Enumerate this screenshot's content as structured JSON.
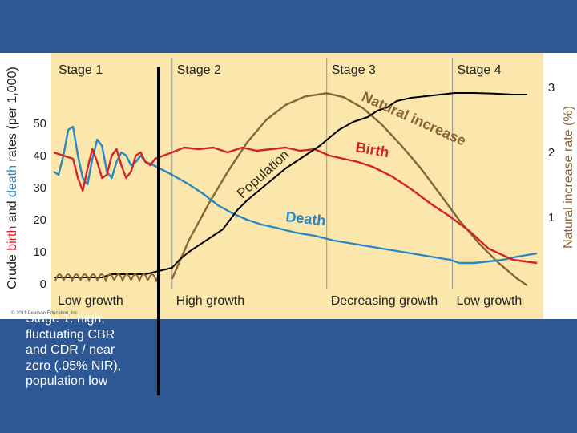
{
  "caption": {
    "lines": [
      "Stage 1: high,",
      "fluctuating CBR",
      "and CDR / near",
      "zero (.05% NIR),",
      "population low"
    ]
  },
  "colors": {
    "slide_bg": "#2e5795",
    "plot_bg": "#fbe7ac",
    "outer_bg": "#ffffff",
    "birth": "#d2232a",
    "death": "#2b86c4",
    "natural_increase": "#8b6433",
    "population": "#000000",
    "stage_divider": "#999999",
    "marker_bar": "#000000"
  },
  "chart_data": {
    "type": "line",
    "x_axis": "time (schematic, no units)",
    "y_left": {
      "label_parts": [
        "Crude ",
        "birth",
        " and ",
        "death",
        " rates (per 1,000)"
      ],
      "range": [
        0,
        70
      ],
      "ticks": [
        "0",
        "10",
        "20",
        "30",
        "40",
        "50"
      ]
    },
    "y_right": {
      "label": "Natural increase rate (%)",
      "range": [
        0,
        3.55
      ],
      "ticks": [
        "1",
        "2",
        "3"
      ]
    },
    "stages": [
      {
        "name": "Stage 1",
        "growth": "Low growth",
        "start": 0
      },
      {
        "name": "Stage 2",
        "growth": "High growth",
        "start": 24.5
      },
      {
        "name": "Stage 3",
        "growth": "Decreasing growth",
        "start": 56.5
      },
      {
        "name": "Stage 4",
        "growth": "Low growth",
        "start": 82.5
      }
    ],
    "x_range": [
      0,
      100
    ],
    "series_labels": {
      "natural_increase": "Natural increase",
      "birth": "Birth",
      "death": "Death",
      "population": "Population"
    },
    "copyright": "© 2011 Pearson Education, Inc.",
    "series": [
      {
        "name": "Birth",
        "axis": "left",
        "points": [
          [
            0,
            41
          ],
          [
            2,
            40
          ],
          [
            4,
            39
          ],
          [
            5,
            33
          ],
          [
            6,
            29
          ],
          [
            7,
            36
          ],
          [
            8,
            42
          ],
          [
            9,
            38
          ],
          [
            10,
            33
          ],
          [
            11,
            34
          ],
          [
            12,
            40
          ],
          [
            13,
            42
          ],
          [
            14,
            37
          ],
          [
            15,
            33
          ],
          [
            16,
            35
          ],
          [
            17,
            40
          ],
          [
            18,
            41
          ],
          [
            19,
            38
          ],
          [
            20,
            37
          ],
          [
            21,
            39
          ],
          [
            24.5,
            41
          ],
          [
            27,
            42.5
          ],
          [
            30,
            42
          ],
          [
            33,
            42.5
          ],
          [
            36,
            41
          ],
          [
            39,
            42.5
          ],
          [
            42,
            41.5
          ],
          [
            45,
            42
          ],
          [
            48,
            42.5
          ],
          [
            51,
            41.5
          ],
          [
            54,
            42
          ],
          [
            57,
            40
          ],
          [
            60,
            39
          ],
          [
            63,
            38
          ],
          [
            66,
            36.5
          ],
          [
            70,
            33.5
          ],
          [
            74,
            29.5
          ],
          [
            78,
            25
          ],
          [
            82,
            21
          ],
          [
            86,
            16.5
          ],
          [
            90,
            11
          ],
          [
            95,
            7.5
          ],
          [
            100,
            6.5
          ]
        ]
      },
      {
        "name": "Death",
        "axis": "left",
        "points": [
          [
            0,
            35
          ],
          [
            1,
            34
          ],
          [
            2,
            40
          ],
          [
            3,
            48
          ],
          [
            4,
            49
          ],
          [
            5,
            40
          ],
          [
            6,
            33
          ],
          [
            7,
            31
          ],
          [
            8,
            39
          ],
          [
            9,
            45
          ],
          [
            10,
            43
          ],
          [
            11,
            35
          ],
          [
            12,
            33
          ],
          [
            13,
            38
          ],
          [
            14,
            41
          ],
          [
            15,
            40
          ],
          [
            16,
            37
          ],
          [
            17,
            38
          ],
          [
            18,
            40
          ],
          [
            19,
            38
          ],
          [
            20,
            37.5
          ],
          [
            24.5,
            34
          ],
          [
            28,
            31
          ],
          [
            31,
            28
          ],
          [
            34,
            24.5
          ],
          [
            37,
            22
          ],
          [
            40,
            20
          ],
          [
            43,
            18.5
          ],
          [
            46,
            17.5
          ],
          [
            50,
            16
          ],
          [
            54,
            15
          ],
          [
            58,
            13.5
          ],
          [
            62,
            12.5
          ],
          [
            66,
            11.5
          ],
          [
            70,
            10.5
          ],
          [
            74,
            9.5
          ],
          [
            78,
            8.5
          ],
          [
            82,
            7.5
          ],
          [
            84,
            6.5
          ],
          [
            87,
            6.5
          ],
          [
            90,
            7
          ],
          [
            93,
            7.5
          ],
          [
            96,
            8.5
          ],
          [
            100,
            9.5
          ]
        ]
      },
      {
        "name": "Natural increase",
        "axis": "right",
        "points": [
          [
            24.5,
            0.05
          ],
          [
            28,
            0.65
          ],
          [
            32,
            1.2
          ],
          [
            36,
            1.7
          ],
          [
            40,
            2.15
          ],
          [
            44,
            2.5
          ],
          [
            48,
            2.73
          ],
          [
            52,
            2.86
          ],
          [
            56.5,
            2.91
          ],
          [
            60,
            2.85
          ],
          [
            64,
            2.68
          ],
          [
            68,
            2.42
          ],
          [
            72,
            2.1
          ],
          [
            76,
            1.75
          ],
          [
            80,
            1.35
          ],
          [
            84,
            0.95
          ],
          [
            88,
            0.6
          ],
          [
            92,
            0.3
          ],
          [
            96,
            0.05
          ],
          [
            98,
            -0.05
          ]
        ]
      },
      {
        "name": "Population",
        "axis": "left",
        "points": [
          [
            0,
            2
          ],
          [
            10,
            2
          ],
          [
            12,
            3
          ],
          [
            19,
            3
          ],
          [
            24.5,
            5
          ],
          [
            26,
            7.5
          ],
          [
            28,
            10
          ],
          [
            32,
            14
          ],
          [
            35,
            17
          ],
          [
            38,
            23
          ],
          [
            40,
            26
          ],
          [
            44,
            31
          ],
          [
            48,
            36
          ],
          [
            52,
            40
          ],
          [
            55,
            43
          ],
          [
            59,
            48
          ],
          [
            62,
            50.5
          ],
          [
            65,
            52
          ],
          [
            67,
            54
          ],
          [
            69,
            55
          ],
          [
            71,
            57
          ],
          [
            74,
            58
          ],
          [
            77,
            58.5
          ],
          [
            80,
            59
          ],
          [
            83,
            59.5
          ],
          [
            87,
            59.5
          ],
          [
            91,
            59.3
          ],
          [
            95,
            59
          ],
          [
            98,
            59
          ]
        ]
      }
    ]
  }
}
